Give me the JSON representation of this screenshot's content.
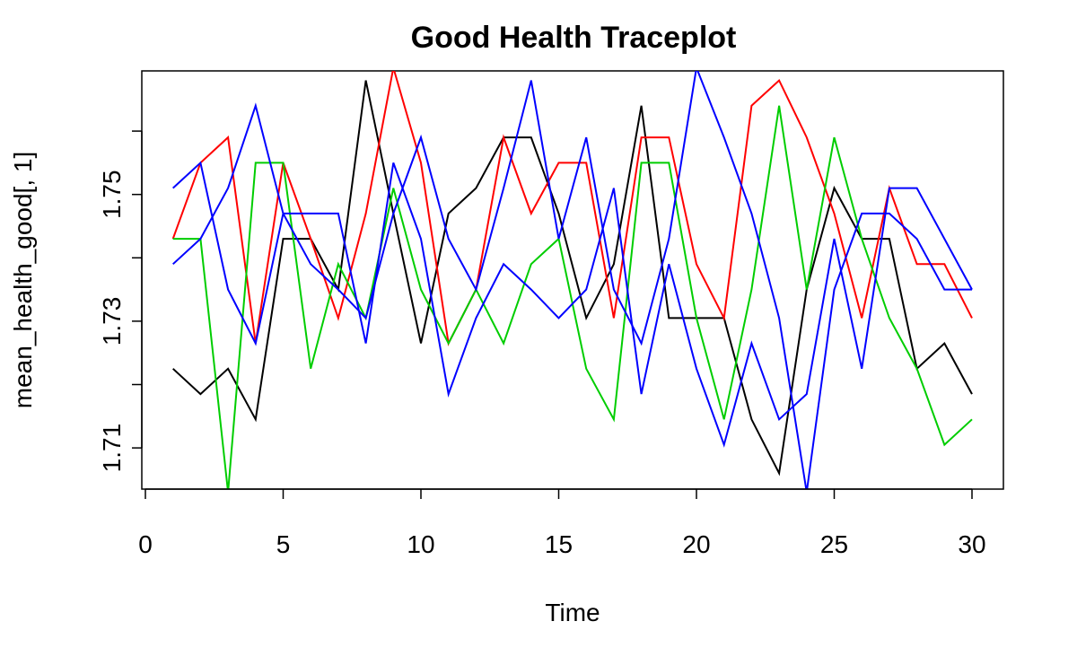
{
  "chart_data": {
    "type": "line",
    "title": "Good Health Traceplot",
    "xlabel": "Time",
    "ylabel": "mean_health_good[, 1]",
    "xlim": [
      0,
      30
    ],
    "ylim": [
      1.7035,
      1.7695
    ],
    "x_ticks": [
      "0",
      "5",
      "10",
      "15",
      "20",
      "25",
      "30"
    ],
    "y_ticks": [
      "1.71",
      "1.73",
      "1.75"
    ],
    "y_tick_values": [
      1.71,
      1.73,
      1.75
    ],
    "y_minor_ticks": [
      1.72,
      1.74,
      1.76
    ],
    "grid": false,
    "x": [
      1,
      2,
      3,
      4,
      5,
      6,
      7,
      8,
      9,
      10,
      11,
      12,
      13,
      14,
      15,
      16,
      17,
      18,
      19,
      20,
      21,
      22,
      23,
      24,
      25,
      26,
      27,
      28,
      29,
      30
    ],
    "series": [
      {
        "color": "#000000",
        "values": [
          1.7225,
          1.7185,
          1.7225,
          1.7145,
          1.743,
          1.743,
          1.735,
          1.768,
          1.747,
          1.7265,
          1.747,
          1.751,
          1.759,
          1.759,
          1.747,
          1.7305,
          1.739,
          1.764,
          1.7305,
          1.7305,
          1.7305,
          1.7145,
          1.706,
          1.735,
          1.751,
          1.743,
          1.743,
          1.7225,
          1.7265,
          1.7185
        ]
      },
      {
        "color": "#ff0000",
        "values": [
          1.743,
          1.755,
          1.759,
          1.7265,
          1.755,
          1.743,
          1.7305,
          1.747,
          1.77,
          1.755,
          1.7265,
          1.735,
          1.759,
          1.747,
          1.755,
          1.755,
          1.7305,
          1.759,
          1.759,
          1.739,
          1.7305,
          1.764,
          1.768,
          1.759,
          1.747,
          1.7305,
          1.751,
          1.739,
          1.739,
          1.7305
        ]
      },
      {
        "color": "#00cd00",
        "values": [
          1.743,
          1.743,
          1.703,
          1.755,
          1.755,
          1.7225,
          1.739,
          1.7305,
          1.751,
          1.735,
          1.7265,
          1.735,
          1.7265,
          1.739,
          1.743,
          1.7225,
          1.7145,
          1.755,
          1.755,
          1.7305,
          1.7145,
          1.735,
          1.764,
          1.735,
          1.759,
          1.743,
          1.7305,
          1.7225,
          1.7105,
          1.7145
        ]
      },
      {
        "color": "#0000ff",
        "values": [
          1.751,
          1.755,
          1.735,
          1.7265,
          1.747,
          1.747,
          1.747,
          1.7265,
          1.755,
          1.743,
          1.7185,
          1.7305,
          1.739,
          1.735,
          1.7305,
          1.735,
          1.751,
          1.7185,
          1.739,
          1.7225,
          1.7105,
          1.7265,
          1.7145,
          1.7185,
          1.743,
          1.7225,
          1.751,
          1.751,
          1.743,
          1.735
        ]
      },
      {
        "color": "#0000ff",
        "values": [
          1.739,
          1.743,
          1.751,
          1.764,
          1.747,
          1.739,
          1.735,
          1.7305,
          1.747,
          1.759,
          1.743,
          1.735,
          1.751,
          1.768,
          1.743,
          1.759,
          1.735,
          1.7265,
          1.743,
          1.77,
          1.759,
          1.747,
          1.7305,
          1.703,
          1.735,
          1.747,
          1.747,
          1.743,
          1.735,
          1.735
        ]
      }
    ]
  }
}
